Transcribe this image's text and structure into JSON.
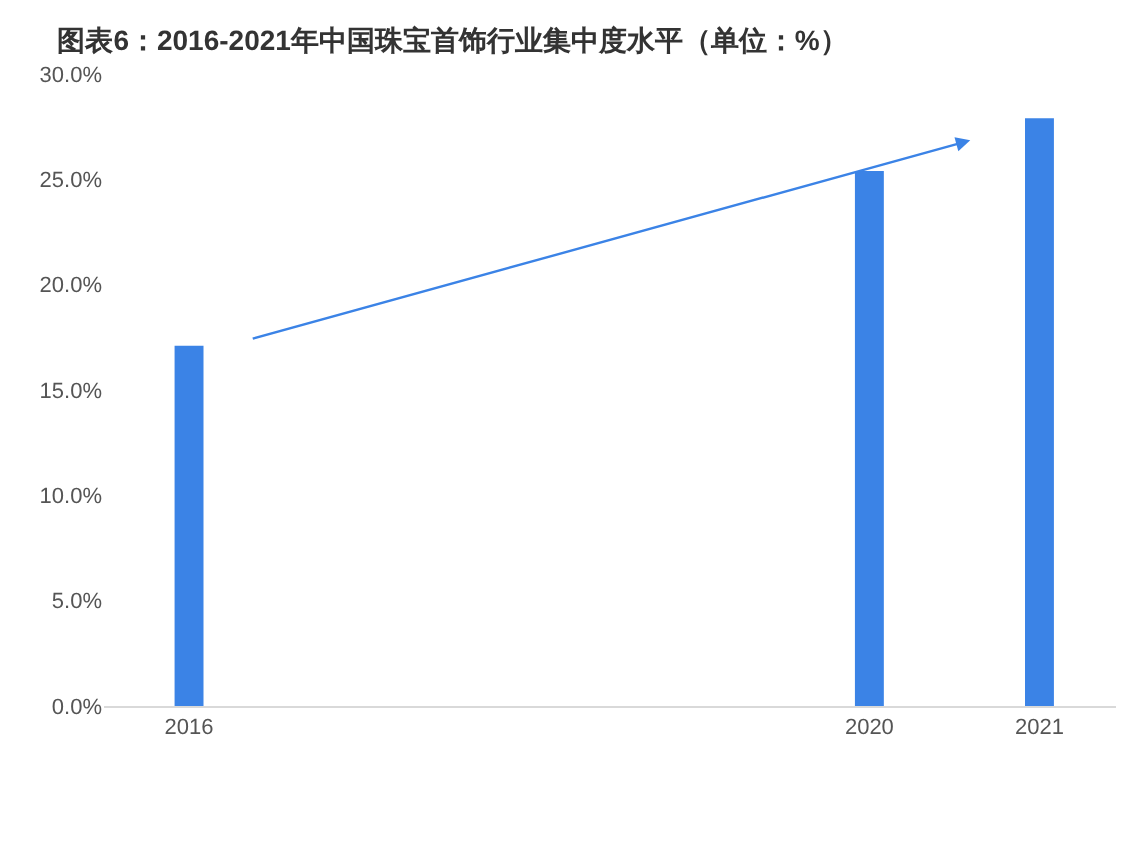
{
  "chart_data": {
    "type": "bar",
    "title": "图表6：2016-2021年中国珠宝首饰行业集中度水平（单位：%）",
    "x": [
      2016,
      2020,
      2021
    ],
    "xlim": [
      2015.5,
      2021.45
    ],
    "xticks": [
      2016,
      2020,
      2021
    ],
    "values": [
      17.1,
      25.4,
      27.9
    ],
    "color": "#3b83e6",
    "ylim": [
      0,
      30
    ],
    "yticks": [
      {
        "value": 0,
        "label": "0.0%"
      },
      {
        "value": 5,
        "label": "5.0%"
      },
      {
        "value": 10,
        "label": "10.0%"
      },
      {
        "value": 15,
        "label": "15.0%"
      },
      {
        "value": 20,
        "label": "20.0%"
      },
      {
        "value": 25,
        "label": "25.0%"
      },
      {
        "value": 30,
        "label": "30.0%"
      }
    ],
    "grid": false
  }
}
